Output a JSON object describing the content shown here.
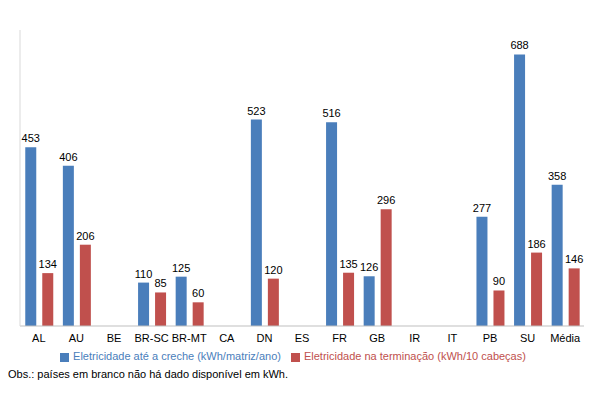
{
  "chart_data": {
    "type": "bar",
    "categories": [
      "AL",
      "AU",
      "BE",
      "BR-SC",
      "BR-MT",
      "CA",
      "DN",
      "ES",
      "FR",
      "GB",
      "IR",
      "IT",
      "PB",
      "SU",
      "Média"
    ],
    "series": [
      {
        "name": "Eletricidade até a creche (kWh/matriz/ano)",
        "color": "#4a7ebb",
        "values": [
          453,
          406,
          null,
          110,
          125,
          null,
          523,
          null,
          516,
          126,
          null,
          null,
          277,
          688,
          358
        ]
      },
      {
        "name": "Eletricidade na terminação (kWh/10 cabeças)",
        "color": "#c0504d",
        "values": [
          134,
          206,
          null,
          85,
          60,
          null,
          120,
          null,
          135,
          296,
          null,
          null,
          90,
          186,
          146
        ]
      }
    ],
    "ylim": [
      0,
      750
    ],
    "data_labels": true,
    "tick_labels": "x",
    "legend": "bottom",
    "annotations": [
      "Obs.: países em branco não há dado disponível em kWh."
    ]
  }
}
